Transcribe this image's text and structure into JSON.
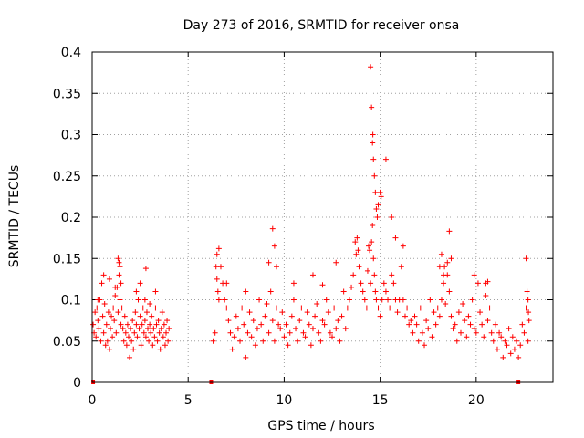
{
  "chart_data": {
    "type": "scatter",
    "title": "Day 273 of 2016, SRMTID for receiver onsa",
    "xlabel": "GPS time / hours",
    "ylabel": "SRMTID / TECUs",
    "xlim": [
      0,
      24
    ],
    "ylim": [
      0,
      0.4
    ],
    "x_ticks": [
      0,
      5,
      10,
      15,
      20
    ],
    "x_tick_labels": [
      "0",
      "5",
      "10",
      "15",
      "20"
    ],
    "y_ticks": [
      0,
      0.05,
      0.1,
      0.15,
      0.2,
      0.25,
      0.3,
      0.35,
      0.4
    ],
    "y_tick_labels": [
      "0",
      "0.05",
      "0.1",
      "0.15",
      "0.2",
      "0.25",
      "0.3",
      "0.35",
      "0.4"
    ],
    "grid": true,
    "marker": "+",
    "color": "#ff0000",
    "gap_markers": {
      "x": [
        0.05,
        6.2,
        22.2
      ],
      "y": [
        0,
        0,
        0
      ]
    },
    "series": [
      {
        "name": "onsa",
        "x": [
          0.05,
          0.1,
          0.15,
          0.2,
          0.25,
          0.3,
          0.35,
          0.4,
          0.45,
          0.5,
          0.55,
          0.6,
          0.65,
          0.7,
          0.75,
          0.8,
          0.85,
          0.9,
          0.95,
          1.0,
          1.05,
          1.1,
          1.15,
          1.2,
          1.25,
          1.3,
          1.35,
          1.4,
          1.45,
          1.5,
          1.55,
          1.6,
          1.65,
          1.7,
          1.75,
          1.8,
          1.85,
          1.9,
          1.95,
          2.0,
          2.05,
          2.1,
          2.15,
          2.2,
          2.25,
          2.3,
          2.35,
          2.4,
          2.45,
          2.5,
          2.55,
          2.6,
          2.65,
          2.7,
          2.75,
          2.8,
          2.85,
          2.9,
          2.95,
          3.0,
          3.05,
          3.1,
          3.15,
          3.2,
          3.25,
          3.3,
          3.35,
          3.4,
          3.45,
          3.5,
          3.55,
          3.6,
          3.65,
          3.7,
          3.75,
          3.8,
          3.85,
          3.9,
          3.95,
          4.0,
          0.3,
          0.6,
          0.9,
          1.2,
          1.35,
          1.4,
          1.45,
          1.5,
          2.3,
          2.5,
          2.75,
          2.8,
          3.0,
          3.3,
          6.3,
          6.4,
          6.5,
          6.6,
          6.7,
          6.8,
          6.9,
          7.0,
          7.1,
          7.2,
          7.3,
          7.4,
          7.5,
          7.6,
          7.7,
          7.8,
          7.9,
          8.0,
          8.1,
          8.2,
          8.3,
          8.4,
          8.5,
          8.6,
          8.7,
          8.8,
          8.9,
          9.0,
          9.1,
          9.2,
          9.3,
          9.4,
          9.5,
          9.6,
          9.7,
          9.8,
          9.9,
          10.0,
          10.1,
          10.2,
          10.3,
          10.4,
          10.5,
          10.6,
          10.7,
          10.8,
          10.9,
          11.0,
          11.1,
          11.2,
          11.3,
          11.4,
          11.5,
          11.6,
          11.7,
          11.8,
          11.9,
          12.0,
          12.1,
          12.2,
          12.3,
          12.4,
          12.5,
          12.6,
          12.7,
          12.8,
          12.9,
          13.0,
          13.1,
          13.2,
          13.3,
          13.4,
          13.5,
          6.45,
          6.5,
          6.55,
          6.6,
          7.0,
          8.0,
          9.2,
          9.4,
          9.5,
          9.6,
          10.5,
          11.5,
          12.0,
          12.7,
          13.6,
          13.7,
          13.75,
          13.8,
          13.85,
          13.9,
          14.0,
          14.1,
          14.2,
          14.3,
          14.35,
          14.4,
          14.45,
          14.5,
          14.55,
          14.6,
          14.65,
          14.7,
          14.75,
          14.8,
          14.9,
          15.0,
          15.1,
          15.2,
          15.3,
          15.4,
          15.5,
          15.6,
          15.7,
          15.8,
          15.9,
          16.0,
          16.1,
          16.2,
          16.3,
          16.4,
          16.5,
          16.6,
          14.5,
          14.55,
          14.6,
          14.62,
          14.65,
          14.7,
          14.75,
          14.8,
          14.85,
          14.9,
          15.0,
          15.05,
          15.3,
          15.6,
          15.8,
          16.2,
          16.7,
          16.8,
          16.9,
          17.0,
          17.1,
          17.2,
          17.3,
          17.4,
          17.5,
          17.6,
          17.7,
          17.8,
          17.9,
          18.0,
          18.1,
          18.2,
          18.3,
          18.4,
          18.5,
          18.6,
          18.7,
          18.8,
          18.9,
          19.0,
          19.1,
          19.2,
          19.3,
          19.4,
          19.5,
          19.6,
          19.7,
          19.8,
          19.9,
          20.0,
          20.1,
          20.2,
          20.3,
          20.4,
          20.5,
          20.6,
          20.7,
          20.8,
          20.9,
          21.0,
          18.1,
          18.2,
          18.3,
          18.35,
          18.5,
          18.6,
          18.7,
          19.9,
          20.5,
          20.6,
          21.1,
          21.2,
          21.3,
          21.4,
          21.5,
          21.6,
          21.7,
          21.8,
          21.9,
          22.0,
          22.1,
          22.2,
          22.3,
          22.4,
          22.5,
          22.6,
          22.7,
          22.75,
          22.6,
          22.65,
          22.7,
          22.72
        ],
        "y": [
          0.07,
          0.06,
          0.085,
          0.055,
          0.09,
          0.075,
          0.065,
          0.1,
          0.05,
          0.12,
          0.08,
          0.06,
          0.095,
          0.045,
          0.07,
          0.05,
          0.085,
          0.04,
          0.065,
          0.08,
          0.055,
          0.09,
          0.075,
          0.105,
          0.06,
          0.115,
          0.085,
          0.13,
          0.1,
          0.07,
          0.09,
          0.065,
          0.05,
          0.08,
          0.06,
          0.045,
          0.07,
          0.055,
          0.03,
          0.065,
          0.05,
          0.075,
          0.04,
          0.06,
          0.085,
          0.07,
          0.055,
          0.1,
          0.065,
          0.08,
          0.045,
          0.07,
          0.09,
          0.06,
          0.075,
          0.055,
          0.085,
          0.065,
          0.05,
          0.07,
          0.06,
          0.08,
          0.045,
          0.065,
          0.055,
          0.09,
          0.07,
          0.05,
          0.075,
          0.06,
          0.04,
          0.065,
          0.085,
          0.055,
          0.07,
          0.045,
          0.06,
          0.075,
          0.05,
          0.065,
          0.1,
          0.13,
          0.125,
          0.115,
          0.15,
          0.145,
          0.14,
          0.12,
          0.11,
          0.12,
          0.1,
          0.138,
          0.095,
          0.11,
          0.05,
          0.06,
          0.155,
          0.162,
          0.14,
          0.12,
          0.1,
          0.09,
          0.075,
          0.06,
          0.04,
          0.055,
          0.08,
          0.065,
          0.05,
          0.09,
          0.07,
          0.03,
          0.06,
          0.085,
          0.055,
          0.075,
          0.045,
          0.065,
          0.1,
          0.07,
          0.05,
          0.08,
          0.095,
          0.06,
          0.11,
          0.075,
          0.05,
          0.09,
          0.07,
          0.065,
          0.085,
          0.055,
          0.07,
          0.045,
          0.06,
          0.08,
          0.1,
          0.065,
          0.05,
          0.075,
          0.09,
          0.06,
          0.055,
          0.085,
          0.07,
          0.045,
          0.065,
          0.08,
          0.095,
          0.06,
          0.05,
          0.075,
          0.07,
          0.1,
          0.085,
          0.06,
          0.055,
          0.09,
          0.065,
          0.075,
          0.05,
          0.08,
          0.11,
          0.065,
          0.09,
          0.1,
          0.115,
          0.14,
          0.125,
          0.11,
          0.1,
          0.12,
          0.11,
          0.145,
          0.186,
          0.165,
          0.14,
          0.12,
          0.13,
          0.118,
          0.145,
          0.13,
          0.17,
          0.155,
          0.175,
          0.16,
          0.14,
          0.12,
          0.11,
          0.1,
          0.09,
          0.135,
          0.165,
          0.16,
          0.12,
          0.17,
          0.19,
          0.15,
          0.13,
          0.11,
          0.1,
          0.09,
          0.08,
          0.1,
          0.12,
          0.11,
          0.1,
          0.09,
          0.13,
          0.12,
          0.1,
          0.085,
          0.1,
          0.14,
          0.1,
          0.08,
          0.09,
          0.07,
          0.075,
          0.382,
          0.333,
          0.29,
          0.3,
          0.27,
          0.25,
          0.23,
          0.21,
          0.2,
          0.215,
          0.23,
          0.225,
          0.27,
          0.2,
          0.175,
          0.165,
          0.06,
          0.08,
          0.07,
          0.05,
          0.09,
          0.06,
          0.045,
          0.075,
          0.065,
          0.1,
          0.055,
          0.085,
          0.07,
          0.09,
          0.08,
          0.1,
          0.12,
          0.095,
          0.13,
          0.11,
          0.08,
          0.065,
          0.07,
          0.05,
          0.085,
          0.06,
          0.095,
          0.075,
          0.055,
          0.08,
          0.07,
          0.1,
          0.065,
          0.06,
          0.12,
          0.085,
          0.07,
          0.055,
          0.105,
          0.075,
          0.09,
          0.06,
          0.05,
          0.07,
          0.14,
          0.155,
          0.13,
          0.14,
          0.145,
          0.183,
          0.15,
          0.13,
          0.12,
          0.122,
          0.04,
          0.06,
          0.055,
          0.03,
          0.05,
          0.045,
          0.065,
          0.035,
          0.055,
          0.04,
          0.05,
          0.03,
          0.045,
          0.07,
          0.06,
          0.09,
          0.05,
          0.075,
          0.15,
          0.11,
          0.1,
          0.085
        ]
      }
    ]
  }
}
